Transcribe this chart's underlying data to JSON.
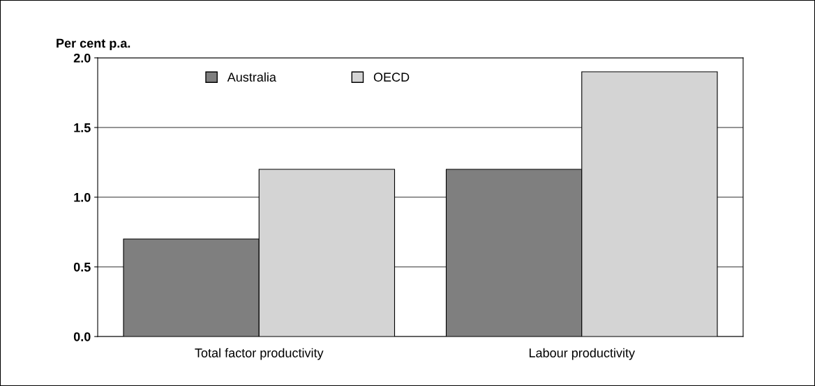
{
  "chart_data": {
    "type": "bar",
    "ylabel": "Per cent p.a.",
    "categories": [
      "Total factor productivity",
      "Labour productivity"
    ],
    "series": [
      {
        "name": "Australia",
        "color": "#7f7f7f",
        "values": [
          0.7,
          1.2
        ]
      },
      {
        "name": "OECD",
        "color": "#d4d4d4",
        "values": [
          1.2,
          1.9
        ]
      }
    ],
    "ylim": [
      0,
      2
    ],
    "yticks": [
      {
        "value": 0,
        "label": "0.0"
      },
      {
        "value": 0.5,
        "label": "0.5"
      },
      {
        "value": 1,
        "label": "1.0"
      },
      {
        "value": 1.5,
        "label": "1.5"
      },
      {
        "value": 2,
        "label": "2.0"
      }
    ],
    "grid": "y",
    "legend": "top left"
  }
}
